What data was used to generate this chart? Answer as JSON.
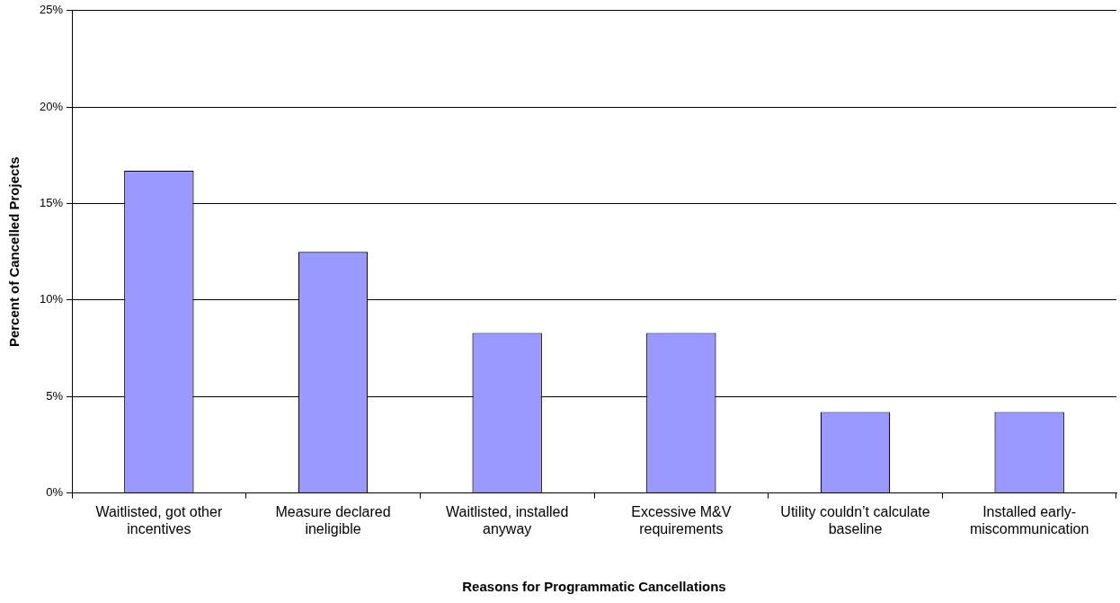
{
  "chart_data": {
    "type": "bar",
    "xlabel": "Reasons for Programmatic Cancellations",
    "ylabel": "Percent of Cancelled Projects",
    "categories": [
      "Waitlisted, got other incentives",
      "Measure declared ineligible",
      "Waitlisted, installed anyway",
      "Excessive M&V requirements",
      "Utility couldn’t calculate baseline",
      "Installed early-miscommunication"
    ],
    "values": [
      16.7,
      12.5,
      8.3,
      8.3,
      4.2,
      4.2
    ],
    "color": "#9999ff",
    "ylim": [
      0,
      25
    ],
    "yticks": [
      {
        "value": 0,
        "label": "0%"
      },
      {
        "value": 5,
        "label": "5%"
      },
      {
        "value": 10,
        "label": "10%"
      },
      {
        "value": 15,
        "label": "15%"
      },
      {
        "value": 20,
        "label": "20%"
      },
      {
        "value": 25,
        "label": "25%"
      }
    ],
    "grid": "y",
    "legend": false
  }
}
